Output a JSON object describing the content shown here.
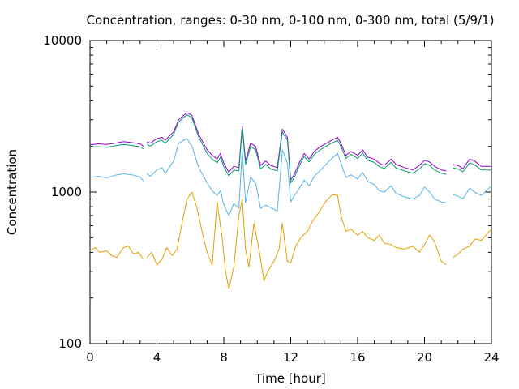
{
  "chart_data": {
    "type": "line",
    "title": "Concentration, ranges: 0-30 nm, 0-100 nm, 0-300 nm, total (5/9/1)",
    "xlabel": "Time [hour]",
    "ylabel": "Concentration",
    "xlim": [
      0,
      24
    ],
    "ylim": [
      100,
      10000
    ],
    "y_scale": "log",
    "grid": false,
    "x_ticks": [
      0,
      4,
      8,
      12,
      16,
      20,
      24
    ],
    "y_ticks": [
      100,
      1000,
      10000
    ],
    "y_tick_labels": [
      "100",
      "1000",
      "10000"
    ],
    "colors": {
      "0-30 nm": "#e69f00",
      "0-100 nm": "#56b4e9",
      "0-300 nm": "#009e73",
      "total": "#9400d3"
    },
    "series": [
      {
        "key": "total",
        "gaps": [
          [
            3.2,
            3.4
          ],
          [
            21.3,
            21.7
          ]
        ],
        "points": [
          [
            0,
            2050
          ],
          [
            0.5,
            2080
          ],
          [
            1,
            2060
          ],
          [
            1.5,
            2100
          ],
          [
            2,
            2150
          ],
          [
            2.5,
            2120
          ],
          [
            3,
            2080
          ],
          [
            3.2,
            2000
          ],
          [
            3.4,
            2150
          ],
          [
            3.6,
            2100
          ],
          [
            4,
            2250
          ],
          [
            4.3,
            2300
          ],
          [
            4.5,
            2200
          ],
          [
            5,
            2500
          ],
          [
            5.3,
            3000
          ],
          [
            5.8,
            3350
          ],
          [
            6.1,
            3200
          ],
          [
            6.5,
            2400
          ],
          [
            7,
            1900
          ],
          [
            7.3,
            1750
          ],
          [
            7.6,
            1650
          ],
          [
            7.8,
            1800
          ],
          [
            8,
            1550
          ],
          [
            8.3,
            1350
          ],
          [
            8.6,
            1480
          ],
          [
            8.9,
            1450
          ],
          [
            9.1,
            2750
          ],
          [
            9.3,
            1600
          ],
          [
            9.6,
            2100
          ],
          [
            9.9,
            2000
          ],
          [
            10.2,
            1500
          ],
          [
            10.5,
            1600
          ],
          [
            10.8,
            1500
          ],
          [
            11.2,
            1450
          ],
          [
            11.5,
            2600
          ],
          [
            11.8,
            2300
          ],
          [
            12,
            1200
          ],
          [
            12.2,
            1300
          ],
          [
            12.5,
            1550
          ],
          [
            12.8,
            1800
          ],
          [
            13.1,
            1650
          ],
          [
            13.4,
            1850
          ],
          [
            13.8,
            2000
          ],
          [
            14.3,
            2150
          ],
          [
            14.8,
            2300
          ],
          [
            15,
            2100
          ],
          [
            15.3,
            1750
          ],
          [
            15.6,
            1850
          ],
          [
            16,
            1750
          ],
          [
            16.3,
            1900
          ],
          [
            16.6,
            1700
          ],
          [
            17,
            1650
          ],
          [
            17.3,
            1550
          ],
          [
            17.6,
            1500
          ],
          [
            18,
            1650
          ],
          [
            18.3,
            1520
          ],
          [
            18.8,
            1450
          ],
          [
            19.3,
            1400
          ],
          [
            19.7,
            1500
          ],
          [
            20,
            1620
          ],
          [
            20.3,
            1580
          ],
          [
            20.6,
            1480
          ],
          [
            21,
            1400
          ],
          [
            21.3,
            1380
          ],
          [
            21.7,
            1520
          ],
          [
            22,
            1500
          ],
          [
            22.3,
            1430
          ],
          [
            22.7,
            1650
          ],
          [
            23,
            1600
          ],
          [
            23.4,
            1480
          ],
          [
            24,
            1480
          ]
        ]
      },
      {
        "key": "0-300 nm",
        "gaps": [
          [
            3.2,
            3.4
          ],
          [
            21.3,
            21.7
          ]
        ],
        "points": [
          [
            0,
            1980
          ],
          [
            0.5,
            1990
          ],
          [
            1,
            1970
          ],
          [
            1.5,
            2020
          ],
          [
            2,
            2060
          ],
          [
            2.5,
            2030
          ],
          [
            3,
            1990
          ],
          [
            3.2,
            1920
          ],
          [
            3.4,
            2060
          ],
          [
            3.6,
            2010
          ],
          [
            4,
            2150
          ],
          [
            4.3,
            2200
          ],
          [
            4.5,
            2100
          ],
          [
            5,
            2400
          ],
          [
            5.3,
            2900
          ],
          [
            5.8,
            3250
          ],
          [
            6.1,
            3080
          ],
          [
            6.5,
            2300
          ],
          [
            7,
            1800
          ],
          [
            7.3,
            1650
          ],
          [
            7.6,
            1560
          ],
          [
            7.8,
            1700
          ],
          [
            8,
            1470
          ],
          [
            8.3,
            1280
          ],
          [
            8.6,
            1400
          ],
          [
            8.9,
            1380
          ],
          [
            9.1,
            2650
          ],
          [
            9.3,
            1520
          ],
          [
            9.6,
            2000
          ],
          [
            9.9,
            1900
          ],
          [
            10.2,
            1420
          ],
          [
            10.5,
            1520
          ],
          [
            10.8,
            1420
          ],
          [
            11.2,
            1380
          ],
          [
            11.5,
            2500
          ],
          [
            11.8,
            2200
          ],
          [
            12,
            1150
          ],
          [
            12.2,
            1240
          ],
          [
            12.5,
            1480
          ],
          [
            12.8,
            1720
          ],
          [
            13.1,
            1580
          ],
          [
            13.4,
            1770
          ],
          [
            13.8,
            1910
          ],
          [
            14.3,
            2060
          ],
          [
            14.8,
            2200
          ],
          [
            15,
            2000
          ],
          [
            15.3,
            1670
          ],
          [
            15.6,
            1770
          ],
          [
            16,
            1670
          ],
          [
            16.3,
            1810
          ],
          [
            16.6,
            1620
          ],
          [
            17,
            1570
          ],
          [
            17.3,
            1470
          ],
          [
            17.6,
            1430
          ],
          [
            18,
            1570
          ],
          [
            18.3,
            1440
          ],
          [
            18.8,
            1380
          ],
          [
            19.3,
            1330
          ],
          [
            19.7,
            1420
          ],
          [
            20,
            1540
          ],
          [
            20.3,
            1500
          ],
          [
            20.6,
            1400
          ],
          [
            21,
            1330
          ],
          [
            21.3,
            1310
          ],
          [
            21.7,
            1440
          ],
          [
            22,
            1420
          ],
          [
            22.3,
            1360
          ],
          [
            22.7,
            1560
          ],
          [
            23,
            1510
          ],
          [
            23.4,
            1400
          ],
          [
            24,
            1400
          ]
        ]
      },
      {
        "key": "0-100 nm",
        "gaps": [
          [
            3.2,
            3.4
          ],
          [
            21.3,
            21.7
          ]
        ],
        "points": [
          [
            0,
            1250
          ],
          [
            0.5,
            1270
          ],
          [
            1,
            1240
          ],
          [
            1.5,
            1290
          ],
          [
            2,
            1320
          ],
          [
            2.5,
            1300
          ],
          [
            3,
            1260
          ],
          [
            3.2,
            1180
          ],
          [
            3.4,
            1330
          ],
          [
            3.6,
            1270
          ],
          [
            4,
            1400
          ],
          [
            4.3,
            1450
          ],
          [
            4.5,
            1330
          ],
          [
            5,
            1600
          ],
          [
            5.3,
            2100
          ],
          [
            5.8,
            2250
          ],
          [
            6.1,
            2000
          ],
          [
            6.5,
            1450
          ],
          [
            7,
            1150
          ],
          [
            7.3,
            1020
          ],
          [
            7.6,
            950
          ],
          [
            7.8,
            1020
          ],
          [
            8,
            820
          ],
          [
            8.3,
            700
          ],
          [
            8.6,
            840
          ],
          [
            8.9,
            780
          ],
          [
            9.1,
            1900
          ],
          [
            9.3,
            850
          ],
          [
            9.6,
            1250
          ],
          [
            9.9,
            1150
          ],
          [
            10.2,
            780
          ],
          [
            10.5,
            820
          ],
          [
            10.8,
            790
          ],
          [
            11.2,
            750
          ],
          [
            11.5,
            1900
          ],
          [
            11.8,
            1550
          ],
          [
            12,
            860
          ],
          [
            12.2,
            940
          ],
          [
            12.5,
            1050
          ],
          [
            12.8,
            1200
          ],
          [
            13.1,
            1100
          ],
          [
            13.4,
            1270
          ],
          [
            13.8,
            1400
          ],
          [
            14.3,
            1600
          ],
          [
            14.8,
            1800
          ],
          [
            15,
            1550
          ],
          [
            15.3,
            1250
          ],
          [
            15.6,
            1300
          ],
          [
            16,
            1220
          ],
          [
            16.3,
            1350
          ],
          [
            16.6,
            1180
          ],
          [
            17,
            1120
          ],
          [
            17.3,
            1020
          ],
          [
            17.6,
            1000
          ],
          [
            18,
            1100
          ],
          [
            18.3,
            980
          ],
          [
            18.8,
            930
          ],
          [
            19.3,
            900
          ],
          [
            19.7,
            950
          ],
          [
            20,
            1080
          ],
          [
            20.3,
            1000
          ],
          [
            20.6,
            900
          ],
          [
            21,
            860
          ],
          [
            21.3,
            850
          ],
          [
            21.7,
            960
          ],
          [
            22,
            940
          ],
          [
            22.3,
            900
          ],
          [
            22.7,
            1060
          ],
          [
            23,
            1000
          ],
          [
            23.4,
            950
          ],
          [
            24,
            1100
          ]
        ]
      },
      {
        "key": "0-30 nm",
        "gaps": [
          [
            3.2,
            3.4
          ],
          [
            21.3,
            21.7
          ]
        ],
        "points": [
          [
            0,
            410
          ],
          [
            0.3,
            430
          ],
          [
            0.6,
            400
          ],
          [
            1,
            410
          ],
          [
            1.3,
            380
          ],
          [
            1.6,
            370
          ],
          [
            2,
            430
          ],
          [
            2.3,
            440
          ],
          [
            2.6,
            390
          ],
          [
            2.9,
            400
          ],
          [
            3.2,
            360
          ],
          [
            3.4,
            370
          ],
          [
            3.7,
            400
          ],
          [
            4,
            330
          ],
          [
            4.3,
            360
          ],
          [
            4.6,
            430
          ],
          [
            4.9,
            380
          ],
          [
            5.2,
            420
          ],
          [
            5.5,
            620
          ],
          [
            5.8,
            900
          ],
          [
            6.1,
            1000
          ],
          [
            6.4,
            780
          ],
          [
            6.7,
            550
          ],
          [
            7,
            400
          ],
          [
            7.3,
            330
          ],
          [
            7.6,
            860
          ],
          [
            7.9,
            500
          ],
          [
            8.1,
            300
          ],
          [
            8.3,
            230
          ],
          [
            8.6,
            320
          ],
          [
            8.9,
            700
          ],
          [
            9.1,
            900
          ],
          [
            9.3,
            420
          ],
          [
            9.5,
            320
          ],
          [
            9.8,
            620
          ],
          [
            10.1,
            420
          ],
          [
            10.4,
            260
          ],
          [
            10.7,
            310
          ],
          [
            11,
            350
          ],
          [
            11.3,
            420
          ],
          [
            11.5,
            620
          ],
          [
            11.8,
            350
          ],
          [
            12,
            340
          ],
          [
            12.3,
            440
          ],
          [
            12.6,
            500
          ],
          [
            13,
            550
          ],
          [
            13.3,
            640
          ],
          [
            13.7,
            740
          ],
          [
            14.1,
            870
          ],
          [
            14.5,
            960
          ],
          [
            14.8,
            950
          ],
          [
            15,
            700
          ],
          [
            15.3,
            550
          ],
          [
            15.6,
            570
          ],
          [
            16,
            520
          ],
          [
            16.3,
            550
          ],
          [
            16.6,
            500
          ],
          [
            17,
            480
          ],
          [
            17.3,
            520
          ],
          [
            17.6,
            460
          ],
          [
            18,
            450
          ],
          [
            18.3,
            430
          ],
          [
            18.8,
            420
          ],
          [
            19.3,
            440
          ],
          [
            19.7,
            400
          ],
          [
            20,
            450
          ],
          [
            20.3,
            520
          ],
          [
            20.6,
            470
          ],
          [
            21,
            350
          ],
          [
            21.3,
            330
          ],
          [
            21.7,
            370
          ],
          [
            22,
            390
          ],
          [
            22.3,
            420
          ],
          [
            22.7,
            440
          ],
          [
            23,
            490
          ],
          [
            23.4,
            480
          ],
          [
            24,
            570
          ]
        ]
      }
    ]
  }
}
